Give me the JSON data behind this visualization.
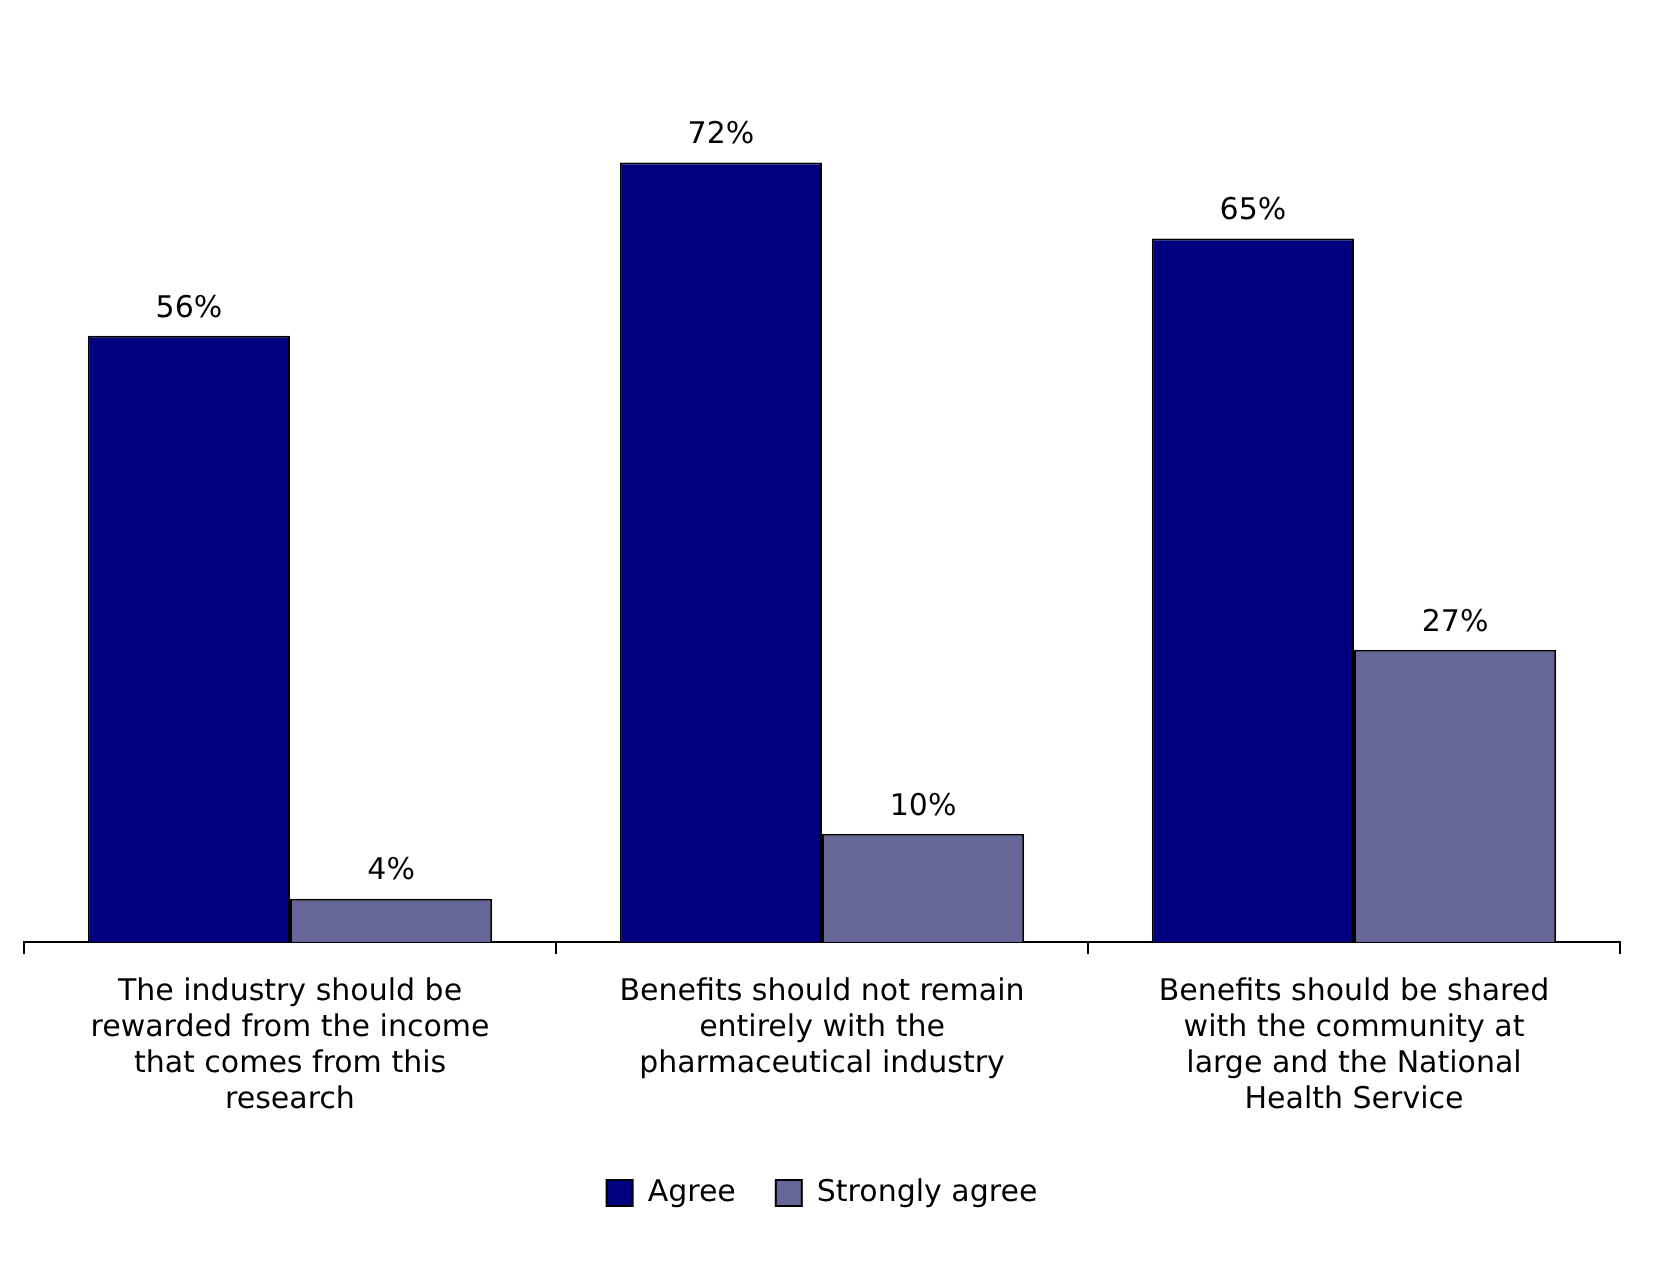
{
  "chart_data": {
    "type": "bar",
    "categories": [
      "The industry should be rewarded from the income that comes from this research",
      "Benefits should not remain entirely with the pharmaceutical industry",
      "Benefits should be shared with the community at large and the National Health Service"
    ],
    "series": [
      {
        "name": "Agree",
        "color": "#000080",
        "values": [
          56,
          72,
          65
        ],
        "value_labels": [
          "56%",
          "72%",
          "65%"
        ]
      },
      {
        "name": "Strongly agree",
        "color": "#666699",
        "values": [
          4,
          10,
          27
        ],
        "value_labels": [
          "4%",
          "10%",
          "27%"
        ]
      }
    ],
    "legend": "bottom"
  }
}
